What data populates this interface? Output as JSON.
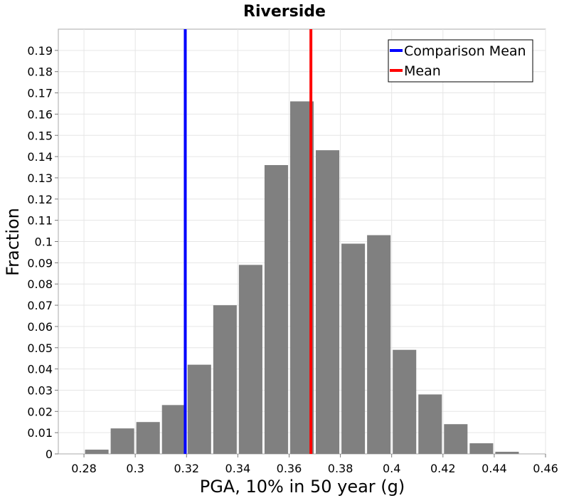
{
  "chart_data": {
    "type": "bar",
    "title": "Riverside",
    "xlabel": "PGA, 10% in 50 year (g)",
    "ylabel": "Fraction",
    "xlim": [
      0.27,
      0.46
    ],
    "ylim": [
      0,
      0.2
    ],
    "grid": true,
    "legend_position": "top-right",
    "bin_width": 0.01,
    "bins": [
      {
        "x": 0.285,
        "value": 0.002
      },
      {
        "x": 0.295,
        "value": 0.012
      },
      {
        "x": 0.305,
        "value": 0.015
      },
      {
        "x": 0.315,
        "value": 0.023
      },
      {
        "x": 0.325,
        "value": 0.042
      },
      {
        "x": 0.335,
        "value": 0.07
      },
      {
        "x": 0.345,
        "value": 0.089
      },
      {
        "x": 0.355,
        "value": 0.136
      },
      {
        "x": 0.365,
        "value": 0.166
      },
      {
        "x": 0.375,
        "value": 0.143
      },
      {
        "x": 0.385,
        "value": 0.099
      },
      {
        "x": 0.395,
        "value": 0.103
      },
      {
        "x": 0.405,
        "value": 0.049
      },
      {
        "x": 0.415,
        "value": 0.028
      },
      {
        "x": 0.425,
        "value": 0.014
      },
      {
        "x": 0.435,
        "value": 0.005
      },
      {
        "x": 0.445,
        "value": 0.001
      }
    ],
    "bar_color": "#808080",
    "vlines": [
      {
        "name": "Comparison Mean",
        "x": 0.3195,
        "color": "#0000ff"
      },
      {
        "name": "Mean",
        "x": 0.3685,
        "color": "#ff0000"
      }
    ],
    "x_ticks": [
      "0.28",
      "0.3",
      "0.32",
      "0.34",
      "0.36",
      "0.38",
      "0.4",
      "0.42",
      "0.44",
      "0.46"
    ],
    "y_ticks": [
      "0",
      "0.01",
      "0.02",
      "0.03",
      "0.04",
      "0.05",
      "0.06",
      "0.07",
      "0.08",
      "0.09",
      "0.1",
      "0.11",
      "0.12",
      "0.13",
      "0.14",
      "0.15",
      "0.16",
      "0.17",
      "0.18",
      "0.19"
    ]
  }
}
